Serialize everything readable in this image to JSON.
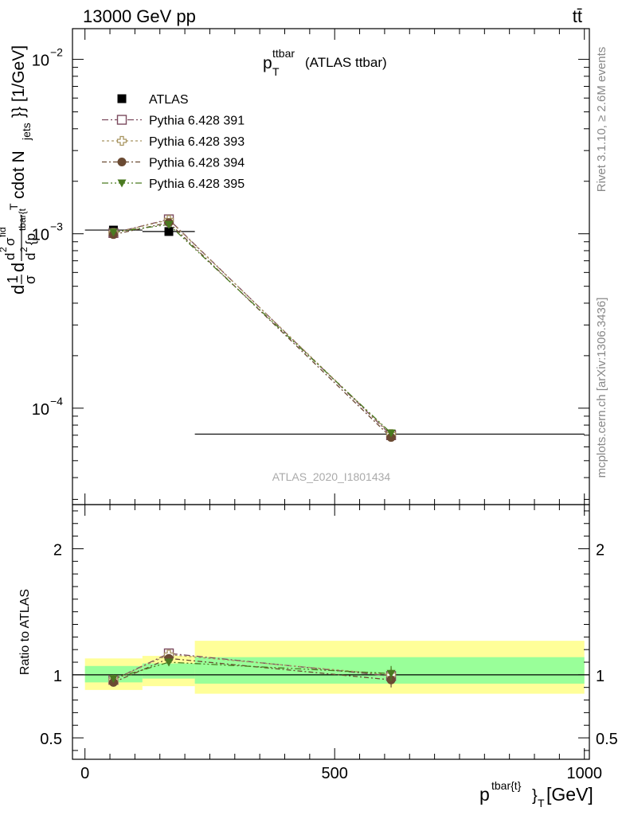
{
  "header": {
    "left": "13000 GeV pp",
    "right": "tt̄"
  },
  "side": {
    "rivet": "Rivet 3.1.10, ≥ 2.6M events",
    "mcplots": "mcplots.cern.ch [arXiv:1306.3436]"
  },
  "chart_data": [
    {
      "type": "scatter",
      "title": "p_T^{ttbar} (ATLAS ttbar)",
      "title_main": "p",
      "title_sup": "ttbar",
      "title_sub": "T",
      "title_rest": "(ATLAS ttbar)",
      "ylabel": "d\\frac{1}{\\sigma}d\\frac{d^2\\sigma^{fid}}{d^2{p^{tbar{t}}_T cdot N_{jets}}} [1/GeV]",
      "ylabel_parts": {
        "a": "d",
        "b": "1",
        "c": "σ",
        "d": "d",
        "e": "d",
        "f": "2",
        "g": "σ",
        "h": "fid",
        "i": "d",
        "j": "2",
        "k": "{p",
        "l": "tbar{t",
        "m": "T",
        "n": "cdot N",
        "o": "jets",
        "p": "}} [1/GeV]"
      },
      "yscale": "log",
      "ylim": [
        2.8e-05,
        0.015
      ],
      "xlim": [
        -25,
        1010
      ],
      "yticks": [
        {
          "value": 0.01,
          "base": "10",
          "exp": "−2"
        },
        {
          "value": 0.001,
          "base": "10",
          "exp": "−3"
        },
        {
          "value": 0.0001,
          "base": "10",
          "exp": "−4"
        }
      ],
      "watermark": "ATLAS_2020_I1801434",
      "legend_position": "top-left",
      "series": [
        {
          "name": "ATLAS",
          "marker": "filled-square",
          "color": "#000000",
          "x": [
            57,
            168,
            613
          ],
          "xerr": [
            [
              0,
              115
            ],
            [
              115,
              220
            ],
            [
              220,
              1000
            ]
          ],
          "y": [
            0.00105,
            0.00103,
            7.1e-05
          ]
        },
        {
          "name": "Pythia 6.428 391",
          "marker": "open-square",
          "color": "#7b4a5e",
          "dash": "8,3,2,3",
          "x": [
            57,
            168,
            613
          ],
          "y": [
            0.00101,
            0.00121,
            7e-05
          ]
        },
        {
          "name": "Pythia 6.428 393",
          "marker": "open-cross",
          "color": "#a89560",
          "dash": "3,3",
          "x": [
            57,
            168,
            613
          ],
          "y": [
            0.00101,
            0.0012,
            7.1e-05
          ]
        },
        {
          "name": "Pythia 6.428 394",
          "marker": "filled-circle",
          "color": "#6a4a32",
          "dash": "6,3,2,3",
          "x": [
            57,
            168,
            613
          ],
          "y": [
            0.00099,
            0.00116,
            6.8e-05
          ]
        },
        {
          "name": "Pythia 6.428 395",
          "marker": "filled-triangle",
          "color": "#4a7a20",
          "dash": "8,3,2,3,2,3",
          "x": [
            57,
            168,
            613
          ],
          "y": [
            0.00102,
            0.00113,
            7.2e-05
          ]
        }
      ]
    },
    {
      "type": "scatter",
      "ylabel": "Ratio to ATLAS",
      "xlabel": "p^{tbar{t}}_T [GeV]",
      "xlabel_parts": {
        "p": "p",
        "sup": "tbar{t}",
        "brace": "}",
        "sub": "T",
        "unit": "[GeV]"
      },
      "ylim": [
        0.33,
        2.35
      ],
      "xlim": [
        -25,
        1010
      ],
      "yticks": [
        {
          "value": 0.5,
          "label": "0.5"
        },
        {
          "value": 1,
          "label": "1"
        },
        {
          "value": 2,
          "label": "2"
        }
      ],
      "xticks": [
        {
          "value": 0,
          "label": "0"
        },
        {
          "value": 500,
          "label": "500"
        },
        {
          "value": 1000,
          "label": "1000"
        }
      ],
      "bands": [
        {
          "x0": 0,
          "x1": 115,
          "green": [
            0.94,
            1.07
          ],
          "yellow": [
            0.88,
            1.13
          ]
        },
        {
          "x0": 115,
          "x1": 220,
          "green": [
            0.97,
            1.09
          ],
          "yellow": [
            0.91,
            1.15
          ]
        },
        {
          "x0": 220,
          "x1": 1000,
          "green": [
            0.93,
            1.14
          ],
          "yellow": [
            0.85,
            1.27
          ]
        }
      ],
      "colors": {
        "green": "#99ff99",
        "yellow": "#ffff99"
      },
      "series": [
        {
          "name": "Pythia 6.428 391",
          "x": [
            57,
            168,
            613
          ],
          "y": [
            0.96,
            1.17,
            0.99
          ],
          "err": [
            0.03,
            0.03,
            0.06
          ]
        },
        {
          "name": "Pythia 6.428 393",
          "x": [
            57,
            168,
            613
          ],
          "y": [
            0.96,
            1.16,
            1.0
          ],
          "err": [
            0.03,
            0.03,
            0.06
          ]
        },
        {
          "name": "Pythia 6.428 394",
          "x": [
            57,
            168,
            613
          ],
          "y": [
            0.94,
            1.13,
            0.96
          ],
          "err": [
            0.03,
            0.03,
            0.06
          ]
        },
        {
          "name": "Pythia 6.428 395",
          "x": [
            57,
            168,
            613
          ],
          "y": [
            0.97,
            1.1,
            1.01
          ],
          "err": [
            0.03,
            0.03,
            0.06
          ]
        }
      ]
    }
  ]
}
